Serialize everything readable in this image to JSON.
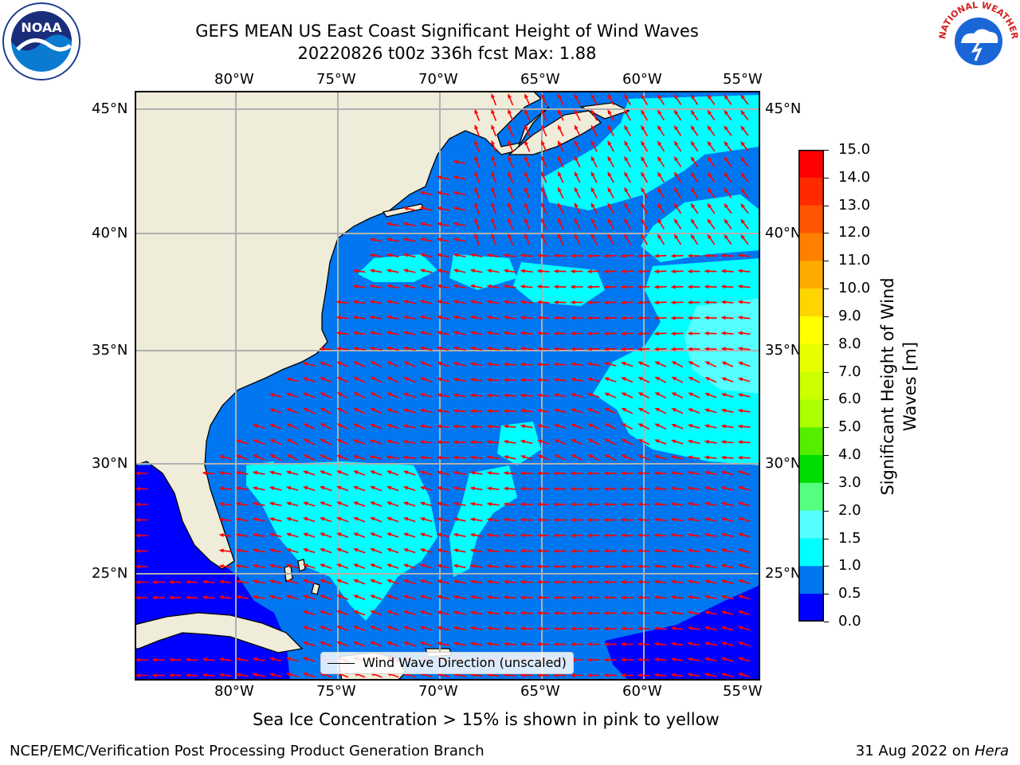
{
  "header": {
    "title_line1": "GEFS MEAN US East Coast Significant Height of Wind Waves",
    "title_line2": "20220826 t00z 336h fcst   Max: 1.88"
  },
  "logos": {
    "left": "NOAA",
    "right": "NATIONAL WEATHER SERVICE"
  },
  "map": {
    "lon_labels": [
      "80°W",
      "75°W",
      "70°W",
      "65°W",
      "60°W",
      "55°W"
    ],
    "lat_labels": [
      "45°N",
      "40°N",
      "35°N",
      "30°N",
      "25°N"
    ],
    "legend_label": "Wind Wave Direction (unscaled)",
    "colors": {
      "land": "#efecd9",
      "lt05": "#0000ff",
      "05to10": "#0077f0",
      "10to15": "#00ffff",
      "15to20": "#55ffff",
      "arrows": "#ff0000",
      "grid": "#b0b0b0"
    }
  },
  "colorbar": {
    "label_line1": "Significant Height of Wind",
    "label_line2": "Waves [m]",
    "ticks": [
      "15.0",
      "14.0",
      "13.0",
      "12.0",
      "11.0",
      "10.0",
      "9.0",
      "8.0",
      "7.0",
      "6.0",
      "5.0",
      "4.0",
      "3.0",
      "2.0",
      "1.5",
      "1.0",
      "0.5",
      "0.0"
    ],
    "colors": [
      "#ff0000",
      "#ff2a00",
      "#ff5500",
      "#ff8000",
      "#ffaa00",
      "#ffd500",
      "#ffff00",
      "#e6ff00",
      "#ccff00",
      "#aaff00",
      "#55ee00",
      "#00dd00",
      "#55ff80",
      "#aaffff",
      "#55ffff",
      "#00ffff",
      "#0077f0",
      "#0000ff"
    ]
  },
  "footer": {
    "note": "Sea Ice Concentration > 15% is shown in pink to yellow",
    "left": "NCEP/EMC/Verification Post Processing Product Generation Branch",
    "right_prefix": "31 Aug 2022 on ",
    "right_italic": "Hera"
  }
}
